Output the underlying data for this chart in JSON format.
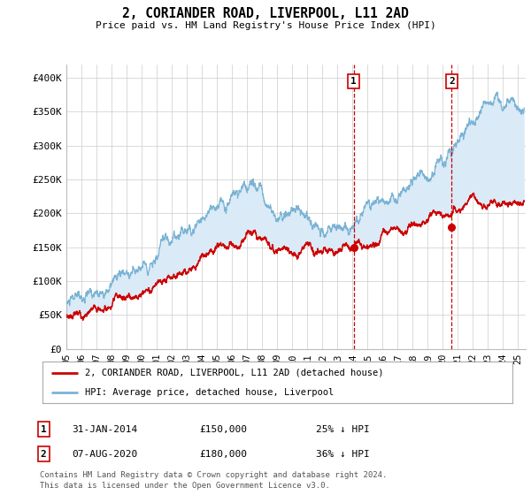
{
  "title": "2, CORIANDER ROAD, LIVERPOOL, L11 2AD",
  "subtitle": "Price paid vs. HM Land Registry's House Price Index (HPI)",
  "ylim": [
    0,
    420000
  ],
  "xlim_start": 1995.0,
  "xlim_end": 2025.5,
  "yticks": [
    0,
    50000,
    100000,
    150000,
    200000,
    250000,
    300000,
    350000,
    400000
  ],
  "ytick_labels": [
    "£0",
    "£50K",
    "£100K",
    "£150K",
    "£200K",
    "£250K",
    "£300K",
    "£350K",
    "£400K"
  ],
  "xtick_years": [
    1995,
    1996,
    1997,
    1998,
    1999,
    2000,
    2001,
    2002,
    2003,
    2004,
    2005,
    2006,
    2007,
    2008,
    2009,
    2010,
    2011,
    2012,
    2013,
    2014,
    2015,
    2016,
    2017,
    2018,
    2019,
    2020,
    2021,
    2022,
    2023,
    2024,
    2025
  ],
  "hpi_color": "#7ab3d4",
  "hpi_fill_color": "#daeaf7",
  "property_color": "#cc0000",
  "vline_color": "#cc0000",
  "sale1_year": 2014.08,
  "sale1_price": 150000,
  "sale1_label": "31-JAN-2014",
  "sale1_pct": "25% ↓ HPI",
  "sale2_year": 2020.59,
  "sale2_price": 180000,
  "sale2_label": "07-AUG-2020",
  "sale2_pct": "36% ↓ HPI",
  "legend_property": "2, CORIANDER ROAD, LIVERPOOL, L11 2AD (detached house)",
  "legend_hpi": "HPI: Average price, detached house, Liverpool",
  "footnote1": "Contains HM Land Registry data © Crown copyright and database right 2024.",
  "footnote2": "This data is licensed under the Open Government Licence v3.0.",
  "background_color": "#ffffff",
  "grid_color": "#cccccc",
  "hpi_seed": 10,
  "prop_seed": 20
}
